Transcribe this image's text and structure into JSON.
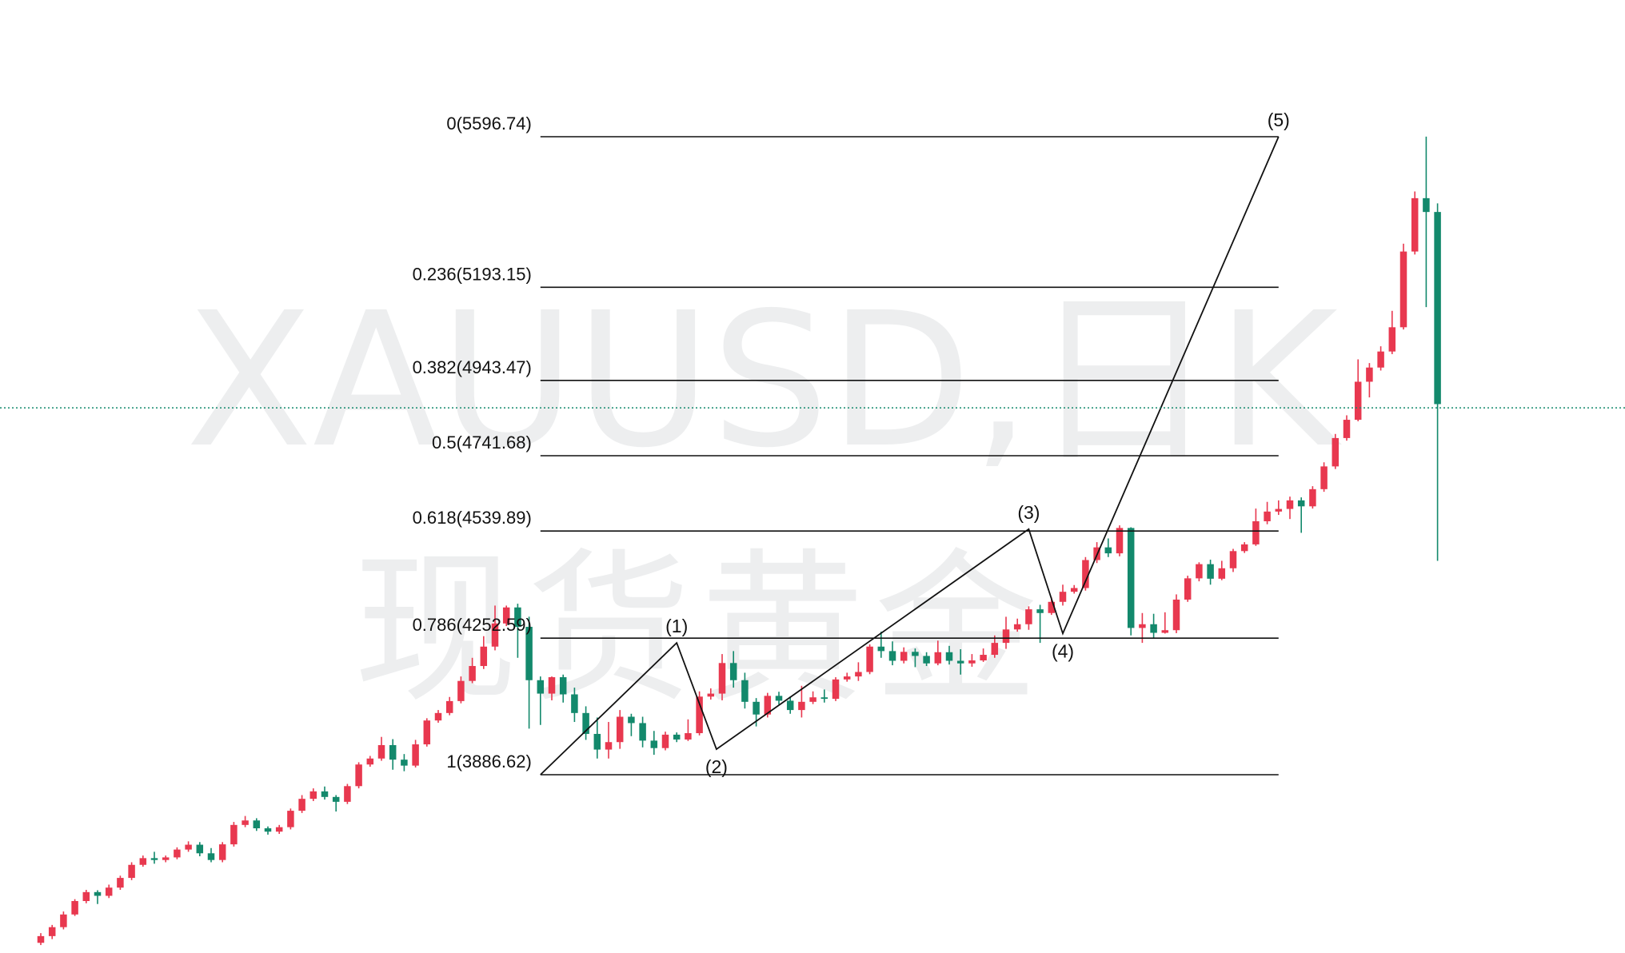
{
  "chart_data": {
    "type": "candlestick",
    "symbol_watermark": "XAUUSD,日K",
    "name_watermark": "现货黄金",
    "colors": {
      "up": "#e8384f",
      "down": "#13896c",
      "lines": "#111111",
      "current_price_line": "#13896c",
      "watermark": "#e6e8e8"
    },
    "y_range": [
      3400,
      5750
    ],
    "current_price": 4870,
    "fib_levels": [
      {
        "ratio": "0",
        "price": 5596.74,
        "label": "0(5596.74)"
      },
      {
        "ratio": "0.236",
        "price": 5193.15,
        "label": "0.236(5193.15)"
      },
      {
        "ratio": "0.382",
        "price": 4943.47,
        "label": "0.382(4943.47)"
      },
      {
        "ratio": "0.5",
        "price": 4741.68,
        "label": "0.5(4741.68)"
      },
      {
        "ratio": "0.618",
        "price": 4539.89,
        "label": "0.618(4539.89)"
      },
      {
        "ratio": "0.786",
        "price": 4252.59,
        "label": "0.786(4252.59)"
      },
      {
        "ratio": "1",
        "price": 3886.62,
        "label": "1(3886.62)"
      }
    ],
    "fib_range_bars": [
      44,
      109
    ],
    "waves": [
      {
        "label": "",
        "bar": 44,
        "price": 3886.62
      },
      {
        "label": "(1)",
        "bar": 56,
        "price": 4240
      },
      {
        "label": "(2)",
        "bar": 59.5,
        "price": 3955
      },
      {
        "label": "(3)",
        "bar": 87,
        "price": 4545
      },
      {
        "label": "(4)",
        "bar": 90,
        "price": 4265
      },
      {
        "label": "(5)",
        "bar": 109,
        "price": 5596.74
      }
    ],
    "candles": [
      [
        3436,
        3454,
        3430,
        3462
      ],
      [
        3454,
        3478,
        3446,
        3484
      ],
      [
        3478,
        3512,
        3472,
        3520
      ],
      [
        3512,
        3548,
        3508,
        3553
      ],
      [
        3548,
        3572,
        3542,
        3578
      ],
      [
        3572,
        3562,
        3540,
        3577
      ],
      [
        3562,
        3584,
        3556,
        3592
      ],
      [
        3584,
        3610,
        3578,
        3616
      ],
      [
        3610,
        3645,
        3604,
        3652
      ],
      [
        3645,
        3663,
        3640,
        3670
      ],
      [
        3663,
        3658,
        3648,
        3680
      ],
      [
        3658,
        3665,
        3652,
        3670
      ],
      [
        3665,
        3686,
        3660,
        3692
      ],
      [
        3686,
        3699,
        3680,
        3708
      ],
      [
        3699,
        3676,
        3668,
        3706
      ],
      [
        3676,
        3658,
        3652,
        3690
      ],
      [
        3658,
        3700,
        3652,
        3706
      ],
      [
        3700,
        3752,
        3694,
        3760
      ],
      [
        3752,
        3764,
        3746,
        3776
      ],
      [
        3764,
        3743,
        3736,
        3770
      ],
      [
        3743,
        3734,
        3726,
        3748
      ],
      [
        3734,
        3746,
        3728,
        3752
      ],
      [
        3746,
        3790,
        3740,
        3796
      ],
      [
        3790,
        3822,
        3784,
        3832
      ],
      [
        3822,
        3842,
        3816,
        3850
      ],
      [
        3842,
        3827,
        3820,
        3855
      ],
      [
        3827,
        3814,
        3788,
        3832
      ],
      [
        3814,
        3856,
        3808,
        3862
      ],
      [
        3856,
        3914,
        3850,
        3920
      ],
      [
        3914,
        3930,
        3908,
        3937
      ],
      [
        3930,
        3966,
        3924,
        3988
      ],
      [
        3966,
        3927,
        3900,
        3982
      ],
      [
        3927,
        3911,
        3896,
        3942
      ],
      [
        3911,
        3968,
        3906,
        3980
      ],
      [
        3968,
        4032,
        3962,
        4038
      ],
      [
        4032,
        4052,
        4026,
        4060
      ],
      [
        4052,
        4084,
        4046,
        4095
      ],
      [
        4084,
        4138,
        4078,
        4150
      ],
      [
        4138,
        4178,
        4132,
        4200
      ],
      [
        4178,
        4230,
        4170,
        4258
      ],
      [
        4230,
        4292,
        4220,
        4340
      ],
      [
        4292,
        4335,
        4285,
        4340
      ],
      [
        4335,
        4283,
        4200,
        4345
      ],
      [
        4283,
        4140,
        4010,
        4310
      ],
      [
        4140,
        4104,
        4020,
        4150
      ],
      [
        4104,
        4148,
        4086,
        4150
      ],
      [
        4148,
        4102,
        4080,
        4155
      ],
      [
        4102,
        4052,
        4028,
        4120
      ],
      [
        4052,
        3996,
        3980,
        4070
      ],
      [
        3996,
        3954,
        3930,
        4040
      ],
      [
        3954,
        3974,
        3930,
        4028
      ],
      [
        3974,
        4042,
        3956,
        4060
      ],
      [
        4042,
        4025,
        3990,
        4050
      ],
      [
        4025,
        3978,
        3960,
        4042
      ],
      [
        3978,
        3958,
        3940,
        4004
      ],
      [
        3958,
        3994,
        3952,
        4002
      ],
      [
        3994,
        3981,
        3974,
        4000
      ],
      [
        3981,
        3998,
        3977,
        4035
      ],
      [
        3998,
        4096,
        3992,
        4110
      ],
      [
        4096,
        4104,
        4088,
        4118
      ],
      [
        4104,
        4186,
        4086,
        4210
      ],
      [
        4186,
        4140,
        4120,
        4218
      ],
      [
        4140,
        4082,
        4064,
        4160
      ],
      [
        4082,
        4048,
        4016,
        4092
      ],
      [
        4048,
        4098,
        4040,
        4106
      ],
      [
        4098,
        4085,
        4075,
        4109
      ],
      [
        4085,
        4060,
        4050,
        4096
      ],
      [
        4060,
        4082,
        4040,
        4125
      ],
      [
        4082,
        4094,
        4076,
        4110
      ],
      [
        4094,
        4090,
        4080,
        4115
      ],
      [
        4090,
        4142,
        4084,
        4148
      ],
      [
        4142,
        4150,
        4136,
        4160
      ],
      [
        4150,
        4162,
        4138,
        4188
      ],
      [
        4162,
        4230,
        4156,
        4236
      ],
      [
        4230,
        4218,
        4200,
        4270
      ],
      [
        4218,
        4192,
        4180,
        4244
      ],
      [
        4192,
        4216,
        4185,
        4228
      ],
      [
        4216,
        4205,
        4175,
        4225
      ],
      [
        4205,
        4185,
        4178,
        4215
      ],
      [
        4185,
        4215,
        4180,
        4246
      ],
      [
        4215,
        4192,
        4182,
        4232
      ],
      [
        4192,
        4185,
        4155,
        4223
      ],
      [
        4185,
        4193,
        4176,
        4210
      ],
      [
        4193,
        4208,
        4189,
        4225
      ],
      [
        4208,
        4240,
        4200,
        4260
      ],
      [
        4240,
        4276,
        4224,
        4310
      ],
      [
        4276,
        4290,
        4270,
        4305
      ],
      [
        4290,
        4330,
        4275,
        4338
      ],
      [
        4330,
        4320,
        4240,
        4342
      ],
      [
        4320,
        4350,
        4315,
        4362
      ],
      [
        4350,
        4377,
        4340,
        4396
      ],
      [
        4377,
        4387,
        4372,
        4395
      ],
      [
        4387,
        4462,
        4380,
        4470
      ],
      [
        4462,
        4496,
        4454,
        4510
      ],
      [
        4496,
        4480,
        4470,
        4520
      ],
      [
        4480,
        4548,
        4472,
        4555
      ],
      [
        4548,
        4280,
        4260,
        4550
      ],
      [
        4280,
        4290,
        4240,
        4320
      ],
      [
        4290,
        4267,
        4252,
        4318
      ],
      [
        4267,
        4274,
        4265,
        4322
      ],
      [
        4274,
        4356,
        4266,
        4370
      ],
      [
        4356,
        4413,
        4350,
        4420
      ],
      [
        4413,
        4451,
        4405,
        4456
      ],
      [
        4451,
        4412,
        4396,
        4463
      ],
      [
        4412,
        4440,
        4408,
        4460
      ],
      [
        4440,
        4486,
        4430,
        4492
      ],
      [
        4486,
        4504,
        4481,
        4510
      ],
      [
        4504,
        4566,
        4500,
        4600
      ],
      [
        4566,
        4592,
        4558,
        4618
      ],
      [
        4592,
        4599,
        4583,
        4622
      ],
      [
        4599,
        4622,
        4572,
        4632
      ],
      [
        4622,
        4606,
        4535,
        4630
      ],
      [
        4606,
        4652,
        4600,
        4660
      ],
      [
        4652,
        4713,
        4645,
        4724
      ],
      [
        4713,
        4789,
        4706,
        4800
      ],
      [
        4789,
        4838,
        4782,
        4850
      ],
      [
        4838,
        4940,
        4834,
        5000
      ],
      [
        4940,
        4978,
        4898,
        4990
      ],
      [
        4978,
        5021,
        4970,
        5035
      ],
      [
        5021,
        5086,
        5014,
        5130
      ],
      [
        5086,
        5289,
        5080,
        5310
      ],
      [
        5289,
        5432,
        5281,
        5450
      ],
      [
        5432,
        5395,
        5140,
        5597
      ],
      [
        5395,
        4880,
        4460,
        5418
      ]
    ]
  }
}
